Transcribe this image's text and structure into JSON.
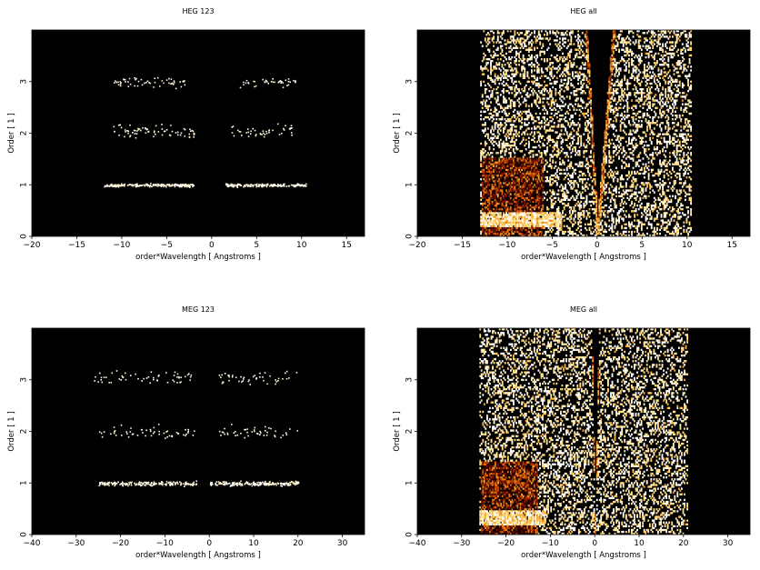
{
  "chart_data": [
    {
      "type": "heatmap",
      "title": "HEG 123",
      "xlabel": "order*Wavelength [ Angstroms ]",
      "ylabel": "Order [ 1 ]",
      "xlim": [
        -20,
        17
      ],
      "ylim": [
        0,
        4
      ],
      "xticks": [
        -20,
        -15,
        -10,
        -5,
        0,
        5,
        10,
        15
      ],
      "yticks": [
        0,
        1,
        2,
        3
      ],
      "mode": "orders",
      "background": "#000000",
      "point_colors": [
        "#ffffff",
        "#fffbe8",
        "#fff2c0"
      ],
      "bands": [
        {
          "order": 1,
          "x_range": [
            -12,
            -2
          ],
          "y_center": 1.0,
          "y_spread": 0.05,
          "density": 200
        },
        {
          "order": 1,
          "x_range": [
            1.5,
            10.5
          ],
          "y_center": 1.0,
          "y_spread": 0.05,
          "density": 170
        },
        {
          "order": 2,
          "x_range": [
            -11,
            -2
          ],
          "y_center": 2.05,
          "y_spread": 0.22,
          "density": 70
        },
        {
          "order": 2,
          "x_range": [
            2,
            9
          ],
          "y_center": 2.05,
          "y_spread": 0.2,
          "density": 45
        },
        {
          "order": 3,
          "x_range": [
            -11,
            -3
          ],
          "y_center": 3.0,
          "y_spread": 0.18,
          "density": 55
        },
        {
          "order": 3,
          "x_range": [
            3,
            9.5
          ],
          "y_center": 3.0,
          "y_spread": 0.15,
          "density": 40
        }
      ]
    },
    {
      "type": "heatmap",
      "title": "HEG all",
      "xlabel": "order*Wavelength [ Angstroms ]",
      "ylabel": "Order [ 1 ]",
      "xlim": [
        -20,
        17
      ],
      "ylim": [
        0,
        4
      ],
      "xticks": [
        -20,
        -15,
        -10,
        -5,
        0,
        5,
        10,
        15
      ],
      "yticks": [
        0,
        1,
        2,
        3
      ],
      "mode": "full",
      "background": "#000000",
      "colormap": [
        "#3a0000",
        "#7a1500",
        "#b83c00",
        "#e07a10",
        "#f5b040",
        "#ffe08a",
        "#ffffff"
      ],
      "x_extent": [
        -13,
        10.5
      ],
      "density_limit": 4,
      "arm_slope_left": -3.2,
      "arm_slope_right": 2.2,
      "arm_limit": 4,
      "low_order_band": [
        0,
        1.5
      ],
      "low_order_x_range": [
        -13,
        -6
      ]
    },
    {
      "type": "heatmap",
      "title": "MEG 123",
      "xlabel": "order*Wavelength [ Angstroms ]",
      "ylabel": "Order [ 1 ]",
      "xlim": [
        -40,
        35
      ],
      "ylim": [
        0,
        4
      ],
      "xticks": [
        -40,
        -30,
        -20,
        -10,
        0,
        10,
        20,
        30
      ],
      "yticks": [
        0,
        1,
        2,
        3
      ],
      "mode": "orders",
      "background": "#000000",
      "point_colors": [
        "#ffffff",
        "#fffbe8",
        "#fff2c0"
      ],
      "bands": [
        {
          "order": 1,
          "x_range": [
            -25,
            -3
          ],
          "y_center": 1.0,
          "y_spread": 0.07,
          "density": 190
        },
        {
          "order": 1,
          "x_range": [
            0,
            20
          ],
          "y_center": 1.0,
          "y_spread": 0.07,
          "density": 190
        },
        {
          "order": 2,
          "x_range": [
            -25,
            -3
          ],
          "y_center": 2.0,
          "y_spread": 0.2,
          "density": 55
        },
        {
          "order": 2,
          "x_range": [
            2,
            20
          ],
          "y_center": 2.0,
          "y_spread": 0.2,
          "density": 45
        },
        {
          "order": 3,
          "x_range": [
            -26,
            -4
          ],
          "y_center": 3.05,
          "y_spread": 0.22,
          "density": 55
        },
        {
          "order": 3,
          "x_range": [
            2,
            20
          ],
          "y_center": 3.05,
          "y_spread": 0.22,
          "density": 45
        }
      ]
    },
    {
      "type": "heatmap",
      "title": "MEG all",
      "xlabel": "order*Wavelength [ Angstroms ]",
      "ylabel": "Order [ 1 ]",
      "xlim": [
        -40,
        35
      ],
      "ylim": [
        0,
        4
      ],
      "xticks": [
        -40,
        -30,
        -20,
        -10,
        0,
        10,
        20,
        30
      ],
      "yticks": [
        0,
        1,
        2,
        3
      ],
      "mode": "full",
      "background": "#000000",
      "colormap": [
        "#3a0000",
        "#7a1500",
        "#b83c00",
        "#e07a10",
        "#f5b040",
        "#ffe08a",
        "#ffffff"
      ],
      "x_extent": [
        -26,
        21
      ],
      "density_limit": 4,
      "arm_slope_left": -5.0,
      "arm_slope_right": 4.5,
      "arm_limit": 4,
      "low_order_band": [
        0,
        1.4
      ],
      "low_order_x_range": [
        -26,
        -13
      ]
    }
  ]
}
